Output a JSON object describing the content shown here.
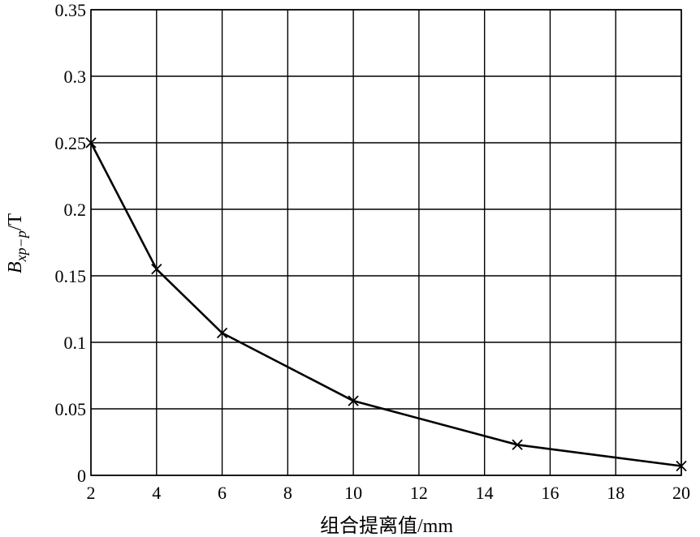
{
  "chart_data": {
    "type": "line",
    "title": "",
    "xlabel": "组合提离值/mm",
    "ylabel": {
      "base": "B",
      "sub": "xp−p",
      "unit": "/T"
    },
    "xlim": [
      2,
      20
    ],
    "ylim": [
      0,
      0.35
    ],
    "xticks": [
      2,
      4,
      6,
      8,
      10,
      12,
      14,
      16,
      18,
      20
    ],
    "xtick_labels": [
      "2",
      "4",
      "6",
      "8",
      "10",
      "12",
      "14",
      "16",
      "18",
      "20"
    ],
    "yticks": [
      0,
      0.05,
      0.1,
      0.15,
      0.2,
      0.25,
      0.3,
      0.35
    ],
    "ytick_labels": [
      "0",
      "0.05",
      "0.1",
      "0.15",
      "0.2",
      "0.25",
      "0.3",
      "0.35"
    ],
    "grid": true,
    "marker": "x",
    "series": [
      {
        "x": [
          2,
          4,
          6,
          10,
          15,
          20
        ],
        "y": [
          0.25,
          0.155,
          0.107,
          0.056,
          0.023,
          0.007
        ]
      }
    ]
  }
}
